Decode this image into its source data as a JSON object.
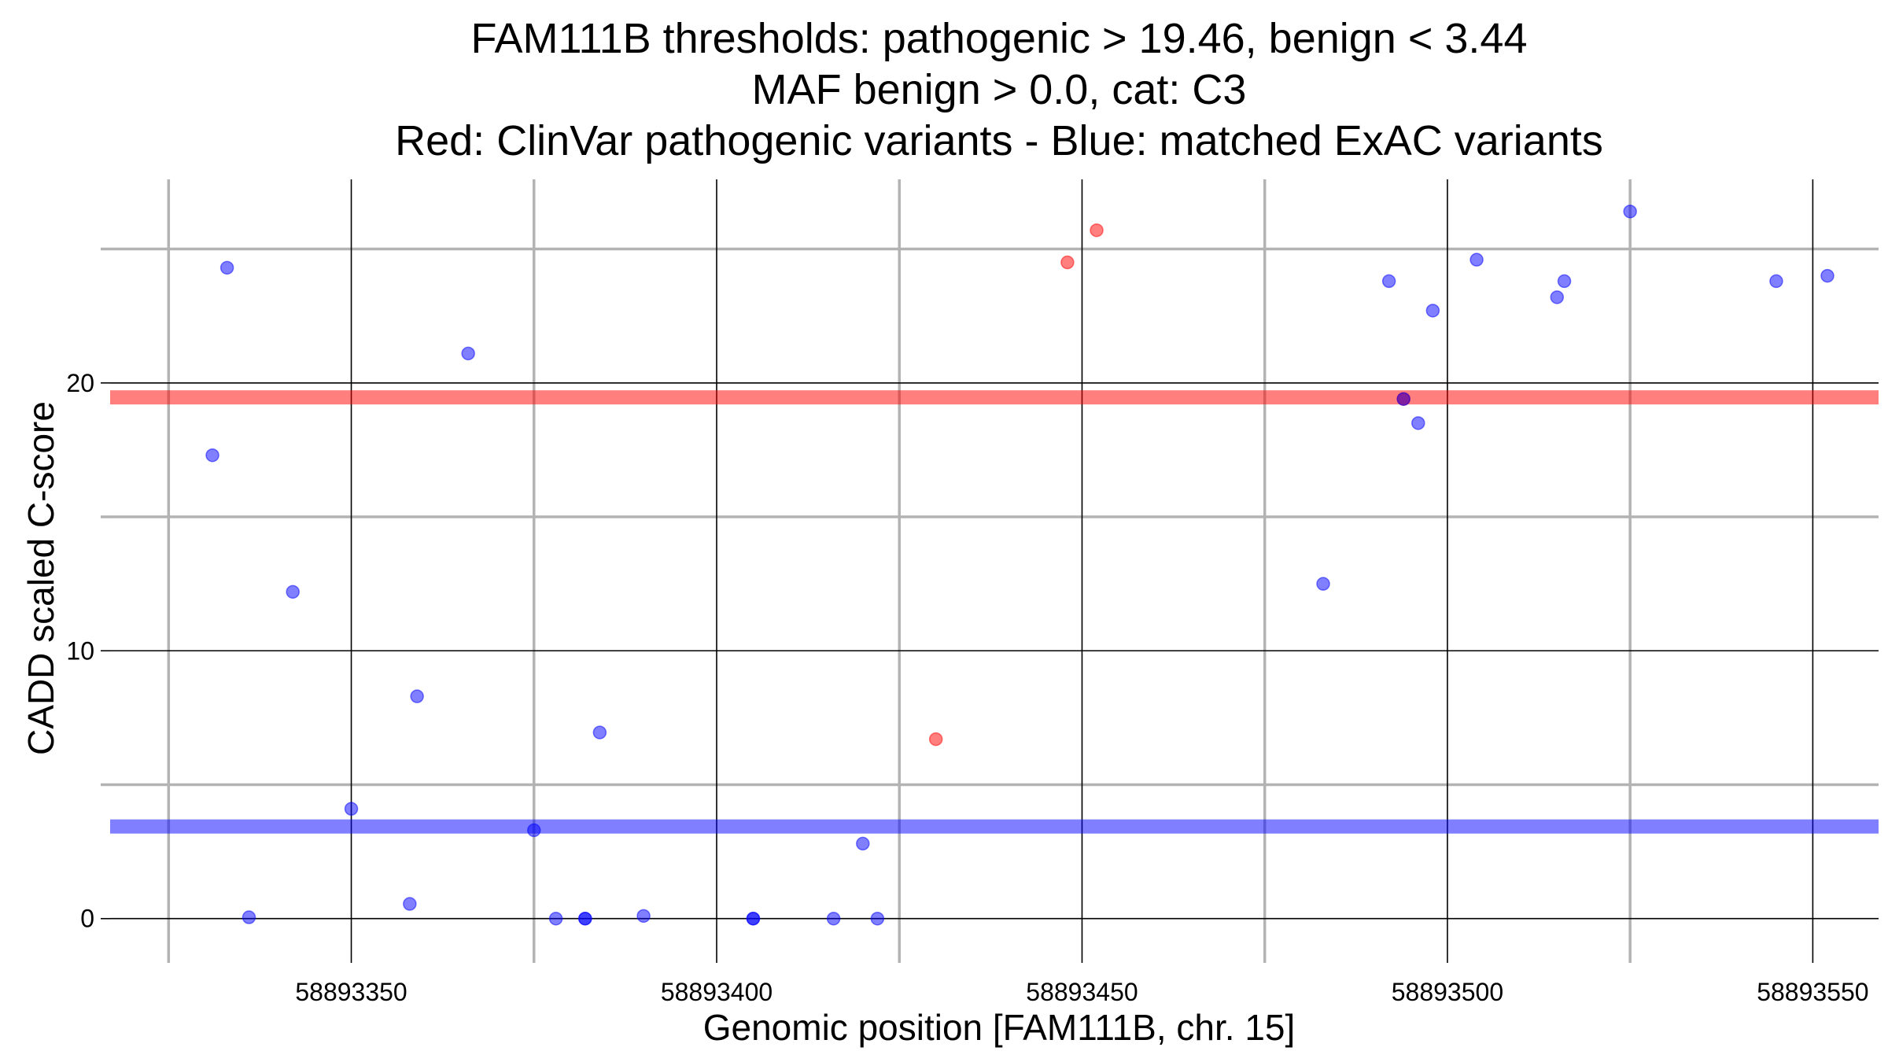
{
  "chart_data": {
    "type": "scatter",
    "title_lines": [
      "FAM111B thresholds: pathogenic > 19.46, benign < 3.44",
      "MAF benign > 0.0, cat: C3",
      "Red: ClinVar pathogenic variants - Blue: matched ExAC variants"
    ],
    "xlabel": "Genomic position [FAM111B, chr. 15]",
    "ylabel": "CADD scaled C-score",
    "xlim": [
      58893317,
      58893559
    ],
    "ylim": [
      -1.3,
      27.6
    ],
    "x_major_ticks": [
      58893350,
      58893400,
      58893450,
      58893500,
      58893550
    ],
    "x_minor_ticks": [
      58893325,
      58893375,
      58893425,
      58893475,
      58893525
    ],
    "y_major_ticks": [
      0,
      10,
      20
    ],
    "y_minor_ticks": [
      5,
      15,
      25
    ],
    "x_tick_labels": [
      "58893350",
      "58893400",
      "58893450",
      "58893500",
      "58893550"
    ],
    "y_tick_labels": [
      "0",
      "10",
      "20"
    ],
    "thresholds": [
      {
        "name": "pathogenic",
        "value": 19.46,
        "color": "#ff0000"
      },
      {
        "name": "benign",
        "value": 3.44,
        "color": "#0000ff"
      }
    ],
    "series": [
      {
        "name": "ClinVar pathogenic variants",
        "color": "#ff0000",
        "points": [
          {
            "x": 58893448,
            "y": 24.5
          },
          {
            "x": 58893452,
            "y": 25.7
          },
          {
            "x": 58893430,
            "y": 6.7
          },
          {
            "x": 58893494,
            "y": 19.4
          }
        ]
      },
      {
        "name": "matched ExAC variants",
        "color": "#0000ff",
        "points": [
          {
            "x": 58893333,
            "y": 24.3
          },
          {
            "x": 58893331,
            "y": 17.3
          },
          {
            "x": 58893342,
            "y": 12.2
          },
          {
            "x": 58893336,
            "y": 0.05
          },
          {
            "x": 58893350,
            "y": 4.1
          },
          {
            "x": 58893358,
            "y": 0.55
          },
          {
            "x": 58893359,
            "y": 8.3
          },
          {
            "x": 58893366,
            "y": 21.1
          },
          {
            "x": 58893375,
            "y": 3.3
          },
          {
            "x": 58893378,
            "y": 0.0
          },
          {
            "x": 58893382,
            "y": 0.0
          },
          {
            "x": 58893382,
            "y": 0.0
          },
          {
            "x": 58893384,
            "y": 6.95
          },
          {
            "x": 58893390,
            "y": 0.1
          },
          {
            "x": 58893405,
            "y": 0.0
          },
          {
            "x": 58893405,
            "y": 0.0
          },
          {
            "x": 58893416,
            "y": 0.0
          },
          {
            "x": 58893420,
            "y": 2.8
          },
          {
            "x": 58893422,
            "y": 0.0
          },
          {
            "x": 58893483,
            "y": 12.5
          },
          {
            "x": 58893492,
            "y": 23.8
          },
          {
            "x": 58893494,
            "y": 19.4
          },
          {
            "x": 58893496,
            "y": 18.5
          },
          {
            "x": 58893498,
            "y": 22.7
          },
          {
            "x": 58893504,
            "y": 24.6
          },
          {
            "x": 58893515,
            "y": 23.2
          },
          {
            "x": 58893516,
            "y": 23.8
          },
          {
            "x": 58893525,
            "y": 26.4
          },
          {
            "x": 58893545,
            "y": 23.8
          },
          {
            "x": 58893552,
            "y": 24.0
          }
        ]
      }
    ]
  }
}
